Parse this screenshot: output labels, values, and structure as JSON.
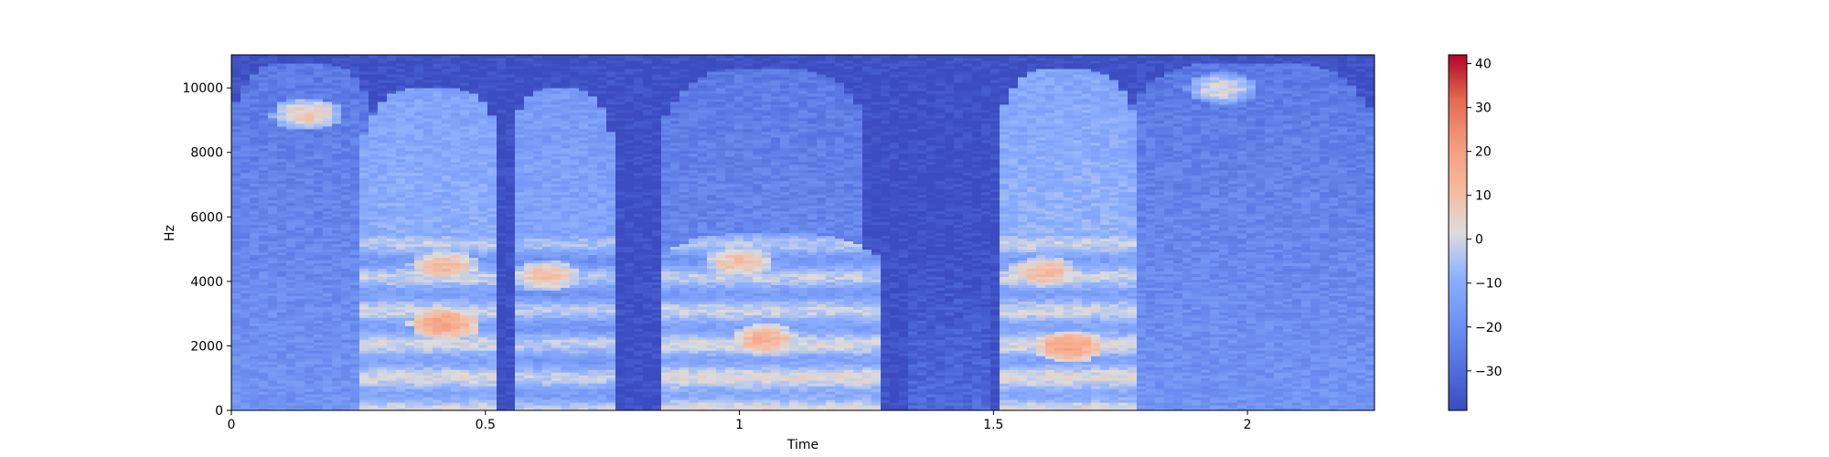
{
  "chart_data": {
    "type": "heatmap",
    "title": "",
    "xlabel": "Time",
    "ylabel": "Hz",
    "xlim": [
      0,
      2.25
    ],
    "ylim": [
      0,
      11025
    ],
    "x_ticks": [
      0,
      0.5,
      1,
      1.5,
      2
    ],
    "x_tick_labels": [
      "0",
      "0.5",
      "1",
      "1.5",
      "2"
    ],
    "y_ticks": [
      0,
      2000,
      4000,
      6000,
      8000,
      10000
    ],
    "y_tick_labels": [
      "0",
      "2000",
      "4000",
      "6000",
      "8000",
      "10000"
    ],
    "colormap": "coolwarm",
    "colorbar": {
      "range": [
        -39,
        42
      ],
      "ticks": [
        -30,
        -20,
        -10,
        0,
        10,
        20,
        30,
        40
      ],
      "tick_labels": [
        "−30",
        "−20",
        "−10",
        "0",
        "10",
        "20",
        "30",
        "40"
      ]
    },
    "background_level": -38,
    "segments": [
      {
        "t": [
          0.0,
          0.28
        ],
        "level_db": -18,
        "fmax": 10800,
        "note": "fricative"
      },
      {
        "t": [
          0.26,
          0.53
        ],
        "level_db": -5,
        "fmax": 10000,
        "note": "voiced with harmonics"
      },
      {
        "t": [
          0.55,
          0.75
        ],
        "level_db": -8,
        "fmax": 10000,
        "note": "voiced with harmonics"
      },
      {
        "t": [
          0.84,
          1.28
        ],
        "level_db": -3,
        "fmax": 5500,
        "note": "voiced with harmonics"
      },
      {
        "t": [
          0.85,
          1.25
        ],
        "level_db": -18,
        "fmax": 10600,
        "note": "high band"
      },
      {
        "t": [
          1.33,
          1.5
        ],
        "level_db": -30,
        "fmax": 5200,
        "note": "weak"
      },
      {
        "t": [
          1.51,
          1.78
        ],
        "level_db": -4,
        "fmax": 10600,
        "note": "voiced with harmonics"
      },
      {
        "t": [
          1.76,
          2.25
        ],
        "level_db": -18,
        "fmax": 10800,
        "note": "fricative"
      }
    ],
    "hotspots": [
      {
        "t": 0.15,
        "f": 9200,
        "db": 8
      },
      {
        "t": 0.42,
        "f": 4500,
        "db": 12
      },
      {
        "t": 0.42,
        "f": 2700,
        "db": 18
      },
      {
        "t": 0.62,
        "f": 4200,
        "db": 10
      },
      {
        "t": 1.0,
        "f": 4600,
        "db": 10
      },
      {
        "t": 1.05,
        "f": 2200,
        "db": 14
      },
      {
        "t": 1.6,
        "f": 4300,
        "db": 12
      },
      {
        "t": 1.65,
        "f": 2000,
        "db": 18
      },
      {
        "t": 1.95,
        "f": 10000,
        "db": 2
      }
    ]
  }
}
